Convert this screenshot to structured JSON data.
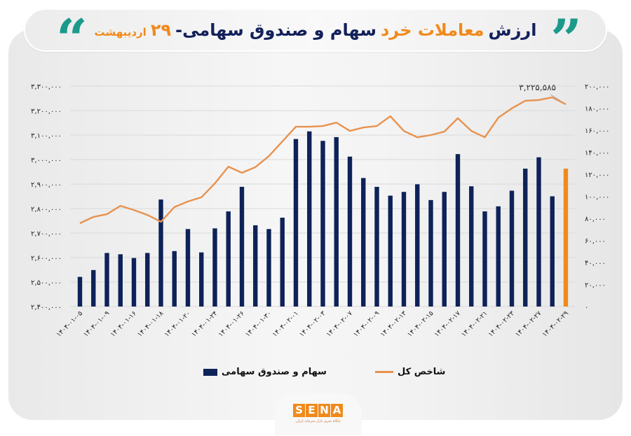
{
  "header": {
    "title_parts": [
      {
        "text": "ارزش",
        "color": "navy"
      },
      {
        "text": "معاملات خرد",
        "color": "orange"
      },
      {
        "text": "سهام و صندوق سهامی-",
        "color": "navy"
      },
      {
        "text": "۲۹",
        "color": "orange"
      },
      {
        "text": "اردیبهشت",
        "color": "orange"
      }
    ],
    "quote_open": "“",
    "quote_close": "”"
  },
  "colors": {
    "navy": "#13205a",
    "bar": "#0d2258",
    "bar_highlight": "#f08a1c",
    "line": "#e8924e",
    "accent_teal": "#1b9a8c",
    "grid": "#d9d9d9"
  },
  "chart_data": {
    "type": "bar+line",
    "title": "ارزش معاملات خرد سهام و صندوق سهامی- ۲۹ اردیبهشت",
    "xlabel": "",
    "ylabel_left": "شاخص کل",
    "ylabel_right": "سهام و صندوق سهامی",
    "left_axis": {
      "min": 2400000,
      "max": 3300000,
      "step": 100000,
      "tick_labels": [
        "۲,۴۰۰,۰۰۰",
        "۲,۵۰۰,۰۰۰",
        "۲,۶۰۰,۰۰۰",
        "۲,۷۰۰,۰۰۰",
        "۲,۸۰۰,۰۰۰",
        "۲,۹۰۰,۰۰۰",
        "۳,۰۰۰,۰۰۰",
        "۳,۱۰۰,۰۰۰",
        "۳,۲۰۰,۰۰۰",
        "۳,۳۰۰,۰۰۰"
      ]
    },
    "right_axis": {
      "min": 0,
      "max": 200000,
      "step": 20000,
      "tick_labels": [
        "۰",
        "۲۰,۰۰۰",
        "۴۰,۰۰۰",
        "۶۰,۰۰۰",
        "۸۰,۰۰۰",
        "۱۰۰,۰۰۰",
        "۱۲۰,۰۰۰",
        "۱۴۰,۰۰۰",
        "۱۶۰,۰۰۰",
        "۱۸۰,۰۰۰",
        "۲۰۰,۰۰۰"
      ]
    },
    "grid": true,
    "legend_position": "bottom",
    "x_tick_labels": [
      "۱۴۰۴-۰۱-۰۵",
      "۱۴۰۴-۰۱-۰۹",
      "۱۴۰۴-۰۱-۱۶",
      "۱۴۰۴-۰۱-۱۸",
      "۱۴۰۴-۰۱-۲۰",
      "۱۴۰۴-۰۱-۲۴",
      "۱۴۰۴-۰۱-۲۶",
      "۱۴۰۴-۰۱-۳۰",
      "۱۴۰۴-۰۲-۰۱",
      "۱۴۰۴-۰۲-۰۳",
      "۱۴۰۴-۰۲-۰۷",
      "۱۴۰۴-۰۲-۰۹",
      "۱۴۰۴-۰۲-۱۳",
      "۱۴۰۴-۰۲-۱۵",
      "۱۴۰۴-۰۲-۱۷",
      "۱۴۰۴-۰۲-۲۱",
      "۱۴۰۴-۰۲-۲۳",
      "۱۴۰۴-۰۲-۲۷",
      "۱۴۰۴-۰۲-۲۹"
    ],
    "x_tick_every": 2,
    "series": [
      {
        "name": "سهام و صندوق سهامی",
        "type": "bar",
        "axis": "right",
        "values": [
          26900,
          33100,
          48600,
          47400,
          44000,
          48600,
          97100,
          50300,
          70300,
          49100,
          70900,
          86300,
          108600,
          73700,
          70300,
          80600,
          152000,
          158900,
          150300,
          153700,
          136000,
          116600,
          108600,
          100600,
          104000,
          110900,
          96600,
          104000,
          138300,
          109100,
          86300,
          90900,
          105100,
          125100,
          135400,
          100000,
          125100
        ],
        "highlight_last": true
      },
      {
        "name": "شاخص کل",
        "type": "line",
        "axis": "left",
        "values": [
          2740000,
          2766000,
          2777000,
          2811000,
          2794000,
          2774000,
          2746000,
          2806000,
          2829000,
          2846000,
          2903000,
          2971000,
          2946000,
          2969000,
          3014000,
          3074000,
          3134000,
          3134000,
          3137000,
          3151000,
          3117000,
          3131000,
          3137000,
          3177000,
          3117000,
          3091000,
          3100000,
          3114000,
          3169000,
          3117000,
          3091000,
          3171000,
          3209000,
          3240000,
          3243000,
          3254000,
          3225585
        ]
      }
    ],
    "annotation": {
      "text": "۳,۲۲۵,۵۸۵",
      "target": "last line point"
    }
  },
  "legend": {
    "bars_label": "سهام و صندوق سهامی",
    "line_label": "شاخص کل"
  },
  "logo": {
    "letters": [
      "S",
      "E",
      "N",
      "A"
    ],
    "subtitle": "پایگاه خبری بازار سرمایه ایران"
  }
}
